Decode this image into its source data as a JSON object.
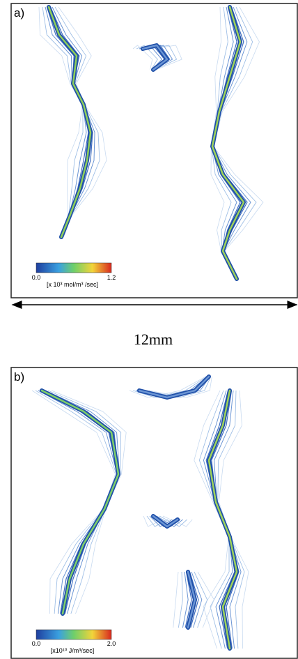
{
  "panels": [
    {
      "label": "a)",
      "colorbar": {
        "min": "0.0",
        "max": "1.2",
        "unit": "[x 10³ mol/m³ /sec]"
      }
    },
    {
      "label": "b)",
      "colorbar": {
        "min": "0.0",
        "max": "2.0",
        "unit": "[x10¹⁰ J/m³/sec]"
      }
    }
  ],
  "scale": "12mm"
}
